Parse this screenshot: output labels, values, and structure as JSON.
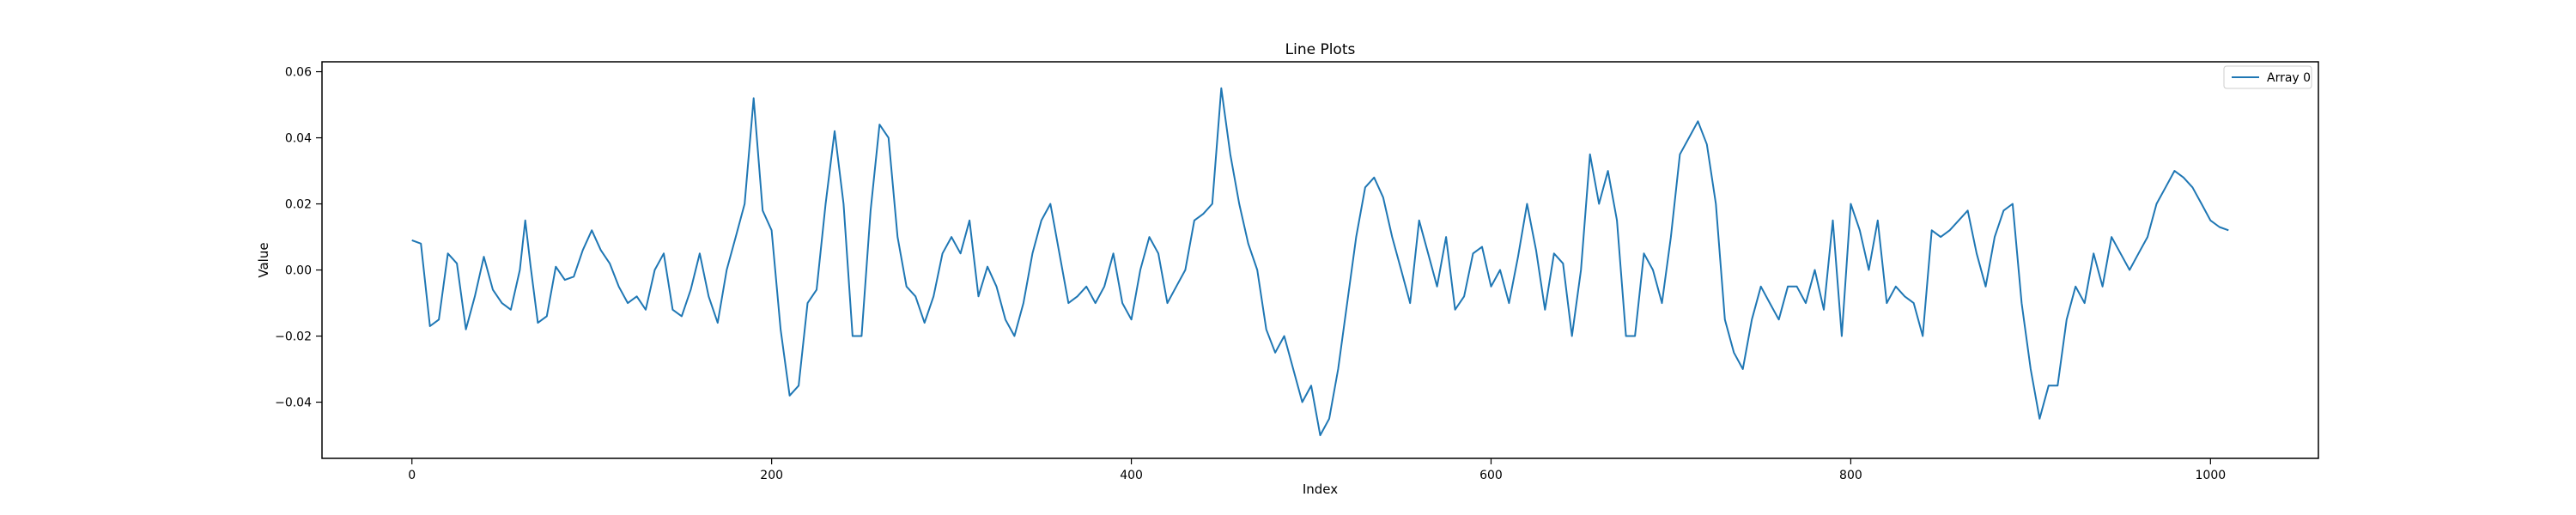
{
  "chart_data": {
    "type": "line",
    "title": "Line Plots",
    "xlabel": "Index",
    "ylabel": "Value",
    "xlim": [
      -50,
      1060
    ],
    "ylim": [
      -0.057,
      0.063
    ],
    "xticks": [
      0,
      200,
      400,
      600,
      800,
      1000
    ],
    "xtick_labels": [
      "0",
      "200",
      "400",
      "600",
      "800",
      "1000"
    ],
    "yticks": [
      -0.04,
      -0.02,
      0.0,
      0.02,
      0.04,
      0.06
    ],
    "ytick_labels": [
      "−0.04",
      "−0.02",
      "0.00",
      "0.02",
      "0.04",
      "0.06"
    ],
    "grid": false,
    "legend_position": "upper right",
    "series": [
      {
        "name": "Array 0",
        "color": "#1f77b4",
        "x": [
          0,
          5,
          10,
          15,
          20,
          25,
          30,
          35,
          40,
          45,
          50,
          55,
          60,
          63,
          66,
          70,
          75,
          80,
          85,
          90,
          95,
          100,
          105,
          110,
          115,
          120,
          125,
          130,
          135,
          140,
          145,
          150,
          155,
          160,
          165,
          170,
          175,
          180,
          185,
          190,
          195,
          200,
          205,
          210,
          215,
          220,
          225,
          230,
          235,
          240,
          245,
          250,
          255,
          260,
          265,
          270,
          275,
          280,
          285,
          290,
          295,
          300,
          305,
          310,
          315,
          320,
          325,
          330,
          335,
          340,
          345,
          350,
          355,
          360,
          365,
          370,
          375,
          380,
          385,
          390,
          395,
          400,
          405,
          410,
          415,
          420,
          425,
          430,
          435,
          440,
          445,
          450,
          455,
          460,
          465,
          470,
          475,
          480,
          485,
          490,
          495,
          500,
          505,
          510,
          515,
          520,
          525,
          530,
          535,
          540,
          545,
          550,
          555,
          560,
          565,
          570,
          575,
          580,
          585,
          590,
          595,
          600,
          605,
          610,
          615,
          620,
          625,
          630,
          635,
          640,
          645,
          650,
          655,
          660,
          665,
          670,
          675,
          680,
          685,
          690,
          695,
          700,
          705,
          710,
          715,
          720,
          725,
          730,
          735,
          740,
          745,
          750,
          755,
          760,
          765,
          770,
          775,
          780,
          785,
          790,
          795,
          800,
          805,
          810,
          815,
          820,
          825,
          830,
          835,
          840,
          845,
          850,
          855,
          860,
          865,
          870,
          875,
          880,
          885,
          890,
          895,
          900,
          905,
          910,
          915,
          920,
          925,
          930,
          935,
          940,
          945,
          950,
          955,
          960,
          965,
          970,
          975,
          980,
          985,
          990,
          995,
          1000,
          1005,
          1010
        ],
        "values": [
          0.009,
          0.008,
          -0.017,
          -0.015,
          0.005,
          0.002,
          -0.018,
          -0.008,
          0.004,
          -0.006,
          -0.01,
          -0.012,
          0.0,
          0.015,
          0.001,
          -0.016,
          -0.014,
          0.001,
          -0.003,
          -0.002,
          0.006,
          0.012,
          0.006,
          0.002,
          -0.005,
          -0.01,
          -0.008,
          -0.012,
          0.0,
          0.005,
          -0.012,
          -0.014,
          -0.006,
          0.005,
          -0.008,
          -0.016,
          0.0,
          0.01,
          0.02,
          0.052,
          0.018,
          0.012,
          -0.018,
          -0.038,
          -0.035,
          -0.01,
          -0.006,
          0.02,
          0.042,
          0.02,
          -0.02,
          -0.02,
          0.018,
          0.044,
          0.04,
          0.01,
          -0.005,
          -0.008,
          -0.016,
          -0.008,
          0.005,
          0.01,
          0.005,
          0.015,
          -0.008,
          0.001,
          -0.005,
          -0.015,
          -0.02,
          -0.01,
          0.005,
          0.015,
          0.02,
          0.005,
          -0.01,
          -0.008,
          -0.005,
          -0.01,
          -0.005,
          0.005,
          -0.01,
          -0.015,
          0.0,
          0.01,
          0.005,
          -0.01,
          -0.005,
          0.0,
          0.015,
          0.017,
          0.02,
          0.055,
          0.035,
          0.02,
          0.008,
          0.0,
          -0.018,
          -0.025,
          -0.02,
          -0.03,
          -0.04,
          -0.035,
          -0.05,
          -0.045,
          -0.03,
          -0.01,
          0.01,
          0.025,
          0.028,
          0.022,
          0.01,
          0.0,
          -0.01,
          0.015,
          0.005,
          -0.005,
          0.01,
          -0.012,
          -0.008,
          0.005,
          0.007,
          -0.005,
          0.0,
          -0.01,
          0.004,
          0.02,
          0.006,
          -0.012,
          0.005,
          0.002,
          -0.02,
          0.0,
          0.035,
          0.02,
          0.03,
          0.015,
          -0.02,
          -0.02,
          0.005,
          0.0,
          -0.01,
          0.01,
          0.035,
          0.04,
          0.045,
          0.038,
          0.02,
          -0.015,
          -0.025,
          -0.03,
          -0.015,
          -0.005,
          -0.01,
          -0.015,
          -0.005,
          -0.005,
          -0.01,
          0.0,
          -0.012,
          0.015,
          -0.02,
          0.02,
          0.012,
          0.0,
          0.015,
          -0.01,
          -0.005,
          -0.008,
          -0.01,
          -0.02,
          0.012,
          0.01,
          0.012,
          0.015,
          0.018,
          0.005,
          -0.005,
          0.01,
          0.018,
          0.02,
          -0.01,
          -0.03,
          -0.045,
          -0.035,
          -0.035,
          -0.015,
          -0.005,
          -0.01,
          0.005,
          -0.005,
          0.01,
          0.005,
          0.0,
          0.005,
          0.01,
          0.02,
          0.025,
          0.03,
          0.028,
          0.025,
          0.02,
          0.015,
          0.013,
          0.012
        ]
      }
    ]
  }
}
